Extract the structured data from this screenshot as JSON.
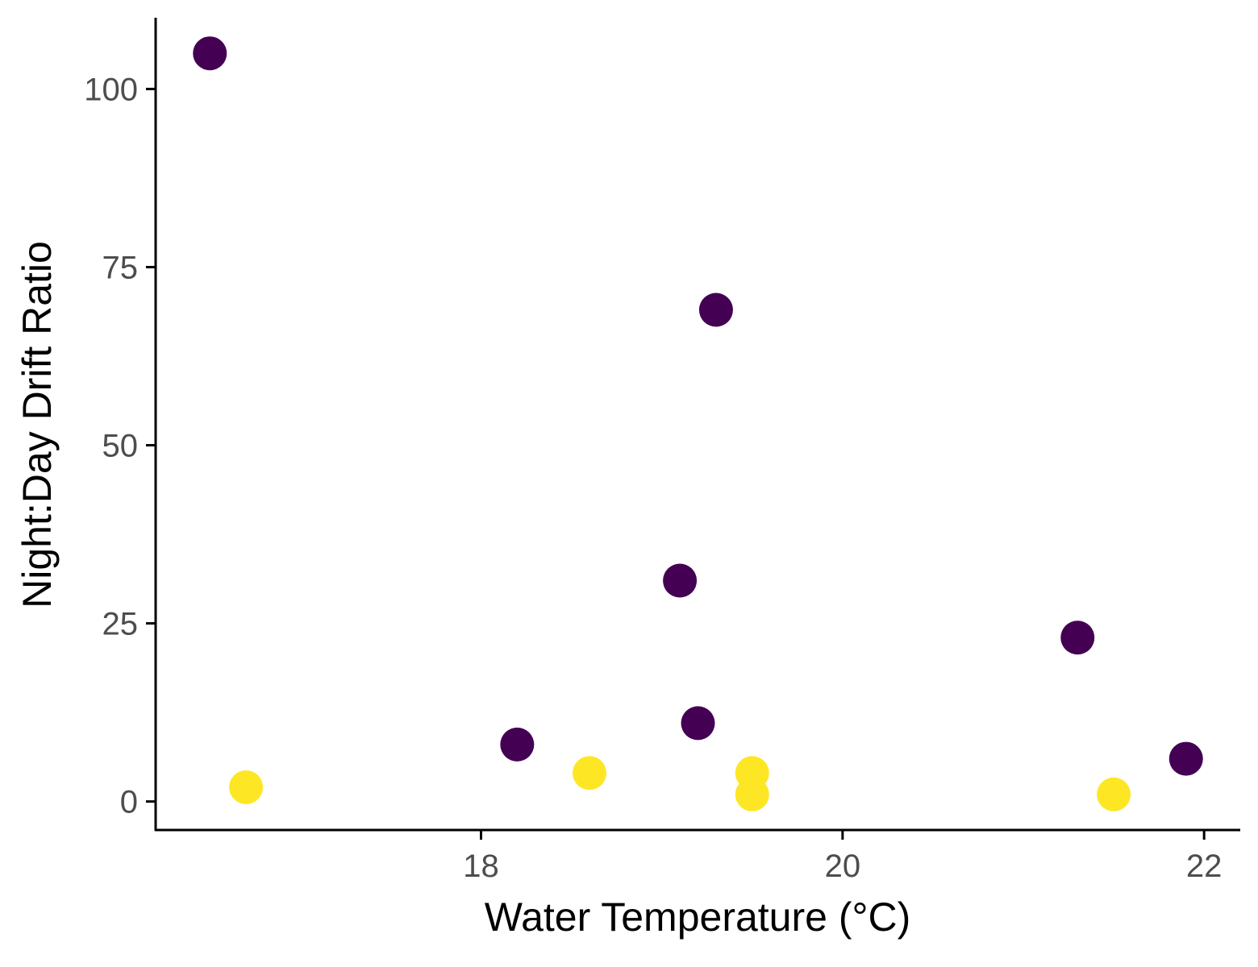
{
  "chart_data": {
    "type": "scatter",
    "title": "",
    "xlabel": "Water Temperature (°C)",
    "ylabel": "Night:Day Drift Ratio",
    "xlim": [
      16.2,
      22.2
    ],
    "ylim": [
      -4,
      110
    ],
    "x_ticks": [
      18,
      20,
      22
    ],
    "y_ticks": [
      0,
      25,
      50,
      75,
      100
    ],
    "grid": false,
    "legend": "none",
    "series": [
      {
        "color": "#440154",
        "x": [
          16.5,
          18.2,
          19.1,
          19.2,
          19.3,
          21.3,
          21.9
        ],
        "y": [
          105,
          8,
          31,
          11,
          69,
          23,
          6
        ]
      },
      {
        "color": "#FDE725",
        "x": [
          16.7,
          18.6,
          19.5,
          19.5,
          21.5
        ],
        "y": [
          2,
          4,
          4,
          1,
          1
        ]
      }
    ]
  }
}
